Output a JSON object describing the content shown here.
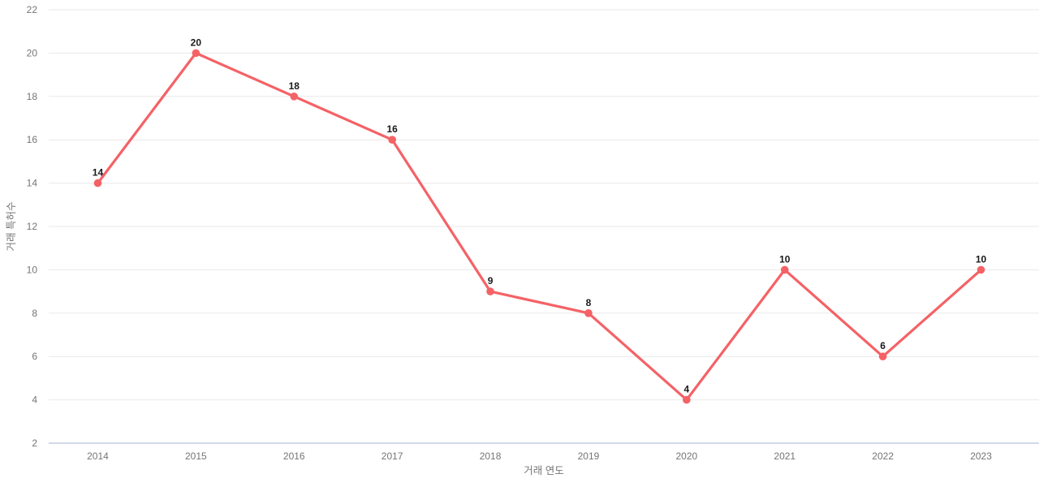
{
  "chart_data": {
    "type": "line",
    "title": "",
    "categories": [
      "2014",
      "2015",
      "2016",
      "2017",
      "2018",
      "2019",
      "2020",
      "2021",
      "2022",
      "2023"
    ],
    "values": [
      14,
      20,
      18,
      16,
      9,
      8,
      4,
      10,
      6,
      10
    ],
    "xlabel": "거래 연도",
    "ylabel": "거래 특허수",
    "ylim": [
      2,
      22
    ],
    "ytick_step": 2,
    "yticks": [
      2,
      4,
      6,
      8,
      10,
      12,
      14,
      16,
      18,
      20,
      22
    ],
    "grid": true,
    "legend": "none",
    "show_point_labels": true,
    "colors": {
      "line": "#f46266",
      "marker": "#f46266",
      "grid": "#e9e9e9",
      "axis_line": "#ccd4e6",
      "tick_text": "#757575",
      "point_label_text": "#1a1a1a",
      "background": "#ffffff"
    }
  }
}
